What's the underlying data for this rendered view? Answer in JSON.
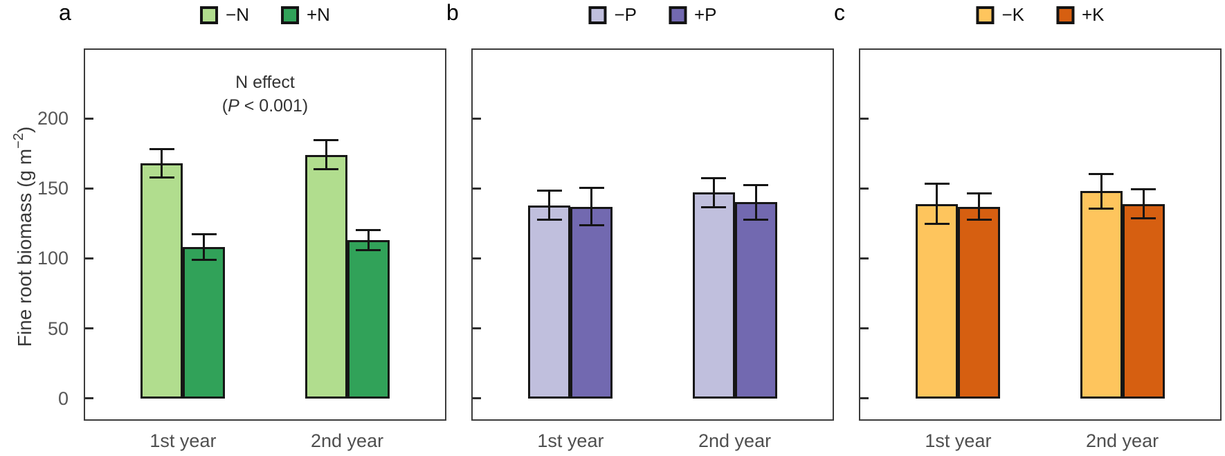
{
  "figure": {
    "ylabel": {
      "pre": "Fine root biomass (g m",
      "sup": "−2",
      "post": ")"
    }
  },
  "chart_data": [
    {
      "type": "bar",
      "panel_label": "a",
      "categories": [
        "1st year",
        "2nd year"
      ],
      "series": [
        {
          "name": "−N",
          "color": "#b1dd8e",
          "values": [
            168,
            174
          ],
          "errors": [
            11,
            11
          ]
        },
        {
          "name": "+N",
          "color": "#31a259",
          "values": [
            108,
            113
          ],
          "errors": [
            10,
            8
          ]
        }
      ],
      "annotation": {
        "line1": "N effect",
        "p_open": "(",
        "p_symbol": "P",
        "p_rest": " < 0.001)"
      },
      "ylabel": "Fine root biomass (g m−2)",
      "xlabel": "",
      "ylim": [
        -15,
        249
      ],
      "yticks": [
        0,
        50,
        100,
        150,
        200
      ],
      "show_ytick_labels": true,
      "grid": false,
      "legend_position": "top-center"
    },
    {
      "type": "bar",
      "panel_label": "b",
      "categories": [
        "1st year",
        "2nd year"
      ],
      "series": [
        {
          "name": "−P",
          "color": "#c0bfdd",
          "values": [
            138,
            147
          ],
          "errors": [
            11,
            11
          ]
        },
        {
          "name": "+P",
          "color": "#7269b0",
          "values": [
            137,
            140
          ],
          "errors": [
            14,
            13
          ]
        }
      ],
      "annotation": null,
      "ylabel": "",
      "xlabel": "",
      "ylim": [
        -15,
        249
      ],
      "yticks": [
        0,
        50,
        100,
        150,
        200
      ],
      "show_ytick_labels": false,
      "grid": false,
      "legend_position": "top-center"
    },
    {
      "type": "bar",
      "panel_label": "c",
      "categories": [
        "1st year",
        "2nd year"
      ],
      "series": [
        {
          "name": "−K",
          "color": "#fec55d",
          "values": [
            139,
            148
          ],
          "errors": [
            15,
            13
          ]
        },
        {
          "name": "+K",
          "color": "#d65f11",
          "values": [
            137,
            139
          ],
          "errors": [
            10,
            11
          ]
        }
      ],
      "annotation": null,
      "ylabel": "",
      "xlabel": "",
      "ylim": [
        -15,
        249
      ],
      "yticks": [
        0,
        50,
        100,
        150,
        200
      ],
      "show_ytick_labels": false,
      "grid": false,
      "legend_position": "top-center"
    }
  ]
}
